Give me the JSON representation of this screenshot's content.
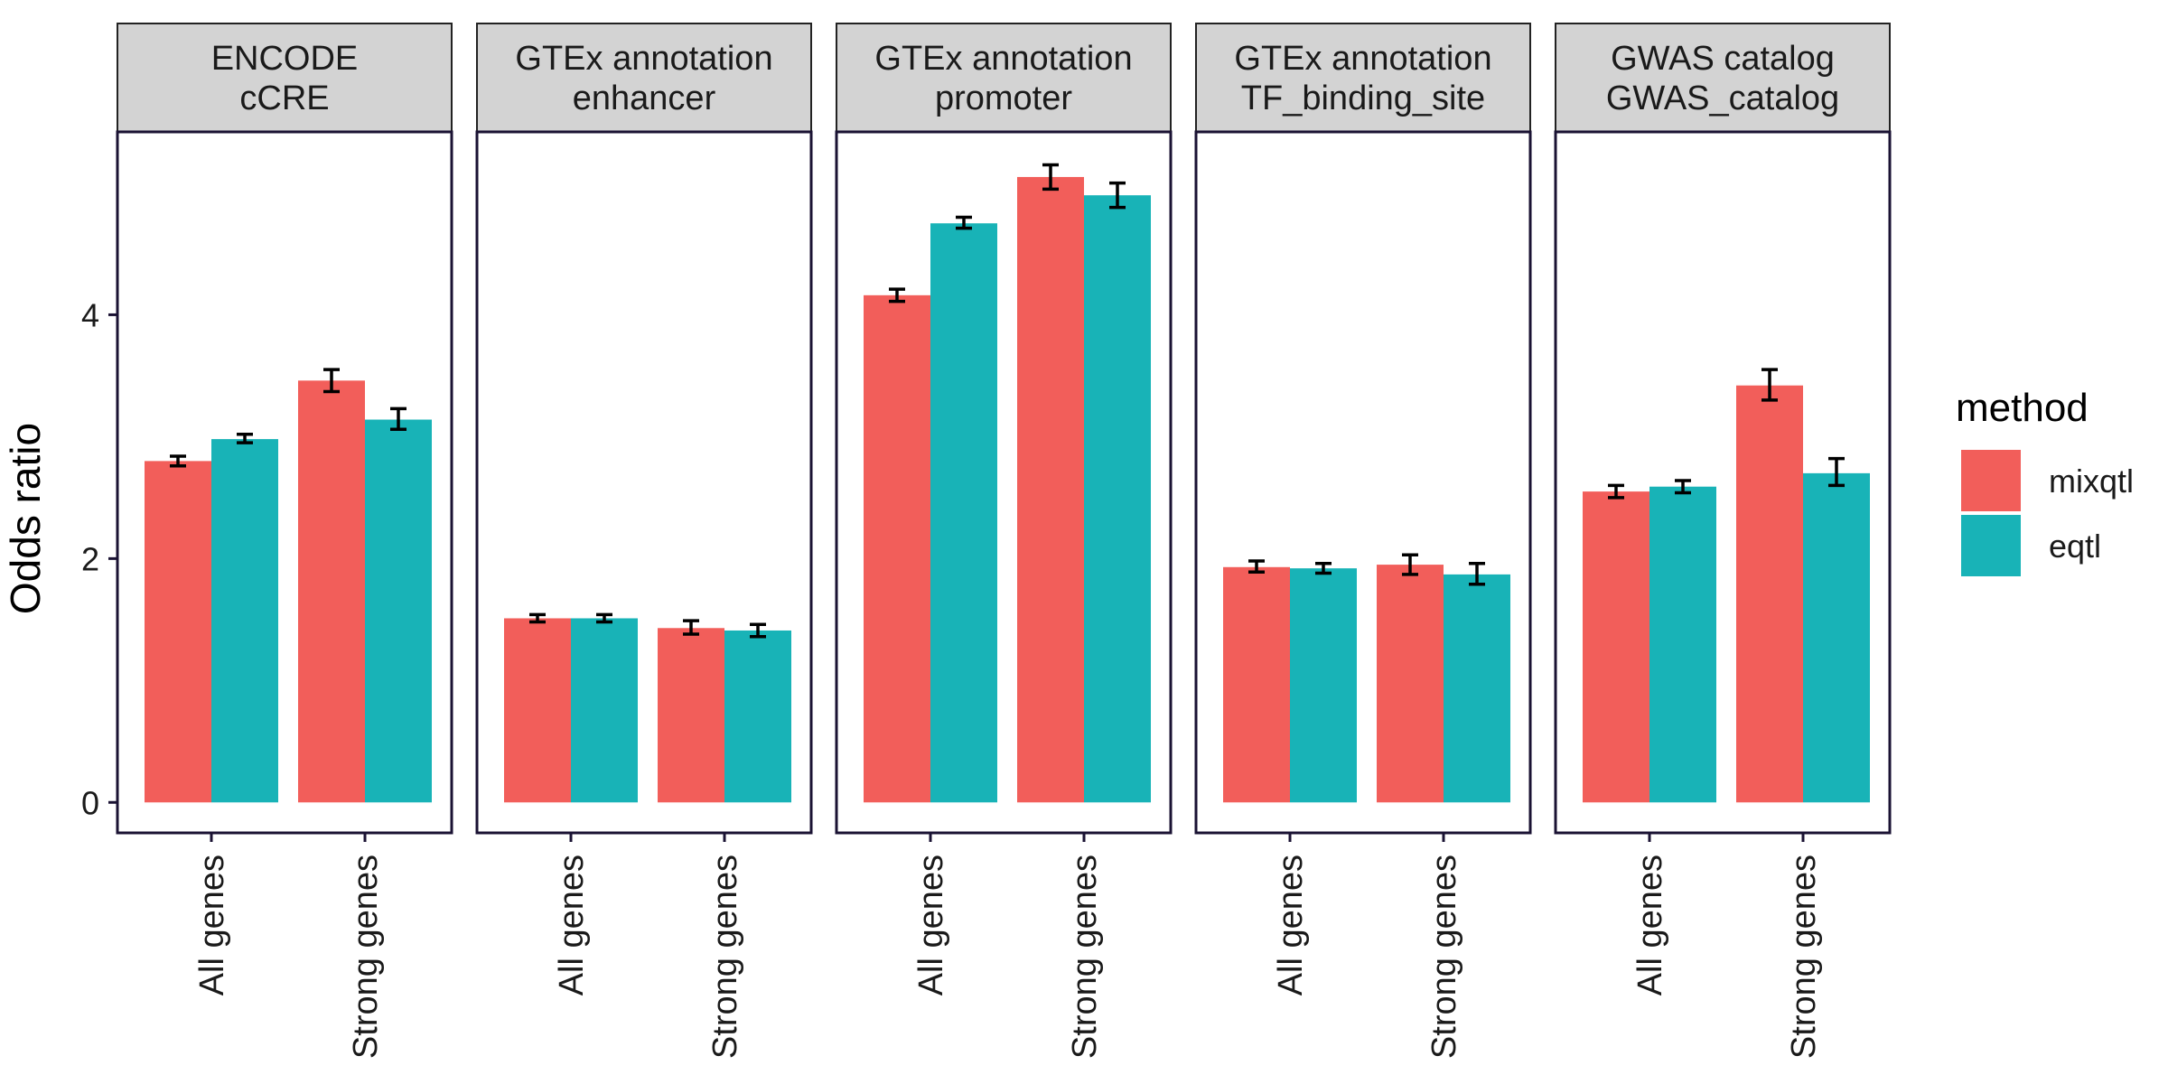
{
  "chart_data": {
    "type": "bar",
    "ylabel": "Odds ratio",
    "xlabel": "",
    "ylim": [
      -0.25,
      5.5
    ],
    "yticks": [
      0,
      2,
      4
    ],
    "categories": [
      "All genes",
      "Strong genes"
    ],
    "legend": {
      "title": "method",
      "position": "right",
      "entries": [
        {
          "name": "mixqtl",
          "color": "#F25E5A"
        },
        {
          "name": "eqtl",
          "color": "#18B3B7"
        }
      ]
    },
    "grid": false,
    "facets": [
      {
        "label_line1": "ENCODE",
        "label_line2": "cCRE",
        "series": [
          {
            "name": "mixqtl",
            "values": [
              2.8,
              3.46
            ],
            "ci_low": [
              2.76,
              3.37
            ],
            "ci_high": [
              2.84,
              3.55
            ]
          },
          {
            "name": "eqtl",
            "values": [
              2.98,
              3.14
            ],
            "ci_low": [
              2.95,
              3.06
            ],
            "ci_high": [
              3.02,
              3.23
            ]
          }
        ]
      },
      {
        "label_line1": "GTEx annotation",
        "label_line2": "enhancer",
        "series": [
          {
            "name": "mixqtl",
            "values": [
              1.51,
              1.43
            ],
            "ci_low": [
              1.48,
              1.38
            ],
            "ci_high": [
              1.54,
              1.49
            ]
          },
          {
            "name": "eqtl",
            "values": [
              1.51,
              1.41
            ],
            "ci_low": [
              1.48,
              1.36
            ],
            "ci_high": [
              1.54,
              1.46
            ]
          }
        ]
      },
      {
        "label_line1": "GTEx annotation",
        "label_line2": "promoter",
        "series": [
          {
            "name": "mixqtl",
            "values": [
              4.16,
              5.13
            ],
            "ci_low": [
              4.11,
              5.03
            ],
            "ci_high": [
              4.21,
              5.23
            ]
          },
          {
            "name": "eqtl",
            "values": [
              4.75,
              4.98
            ],
            "ci_low": [
              4.71,
              4.88
            ],
            "ci_high": [
              4.8,
              5.08
            ]
          }
        ]
      },
      {
        "label_line1": "GTEx annotation",
        "label_line2": "TF_binding_site",
        "series": [
          {
            "name": "mixqtl",
            "values": [
              1.93,
              1.95
            ],
            "ci_low": [
              1.89,
              1.87
            ],
            "ci_high": [
              1.98,
              2.03
            ]
          },
          {
            "name": "eqtl",
            "values": [
              1.92,
              1.87
            ],
            "ci_low": [
              1.88,
              1.79
            ],
            "ci_high": [
              1.96,
              1.96
            ]
          }
        ]
      },
      {
        "label_line1": "GWAS catalog",
        "label_line2": "GWAS_catalog",
        "series": [
          {
            "name": "mixqtl",
            "values": [
              2.55,
              3.42
            ],
            "ci_low": [
              2.5,
              3.3
            ],
            "ci_high": [
              2.6,
              3.55
            ]
          },
          {
            "name": "eqtl",
            "values": [
              2.59,
              2.7
            ],
            "ci_low": [
              2.54,
              2.6
            ],
            "ci_high": [
              2.64,
              2.82
            ]
          }
        ]
      }
    ]
  }
}
